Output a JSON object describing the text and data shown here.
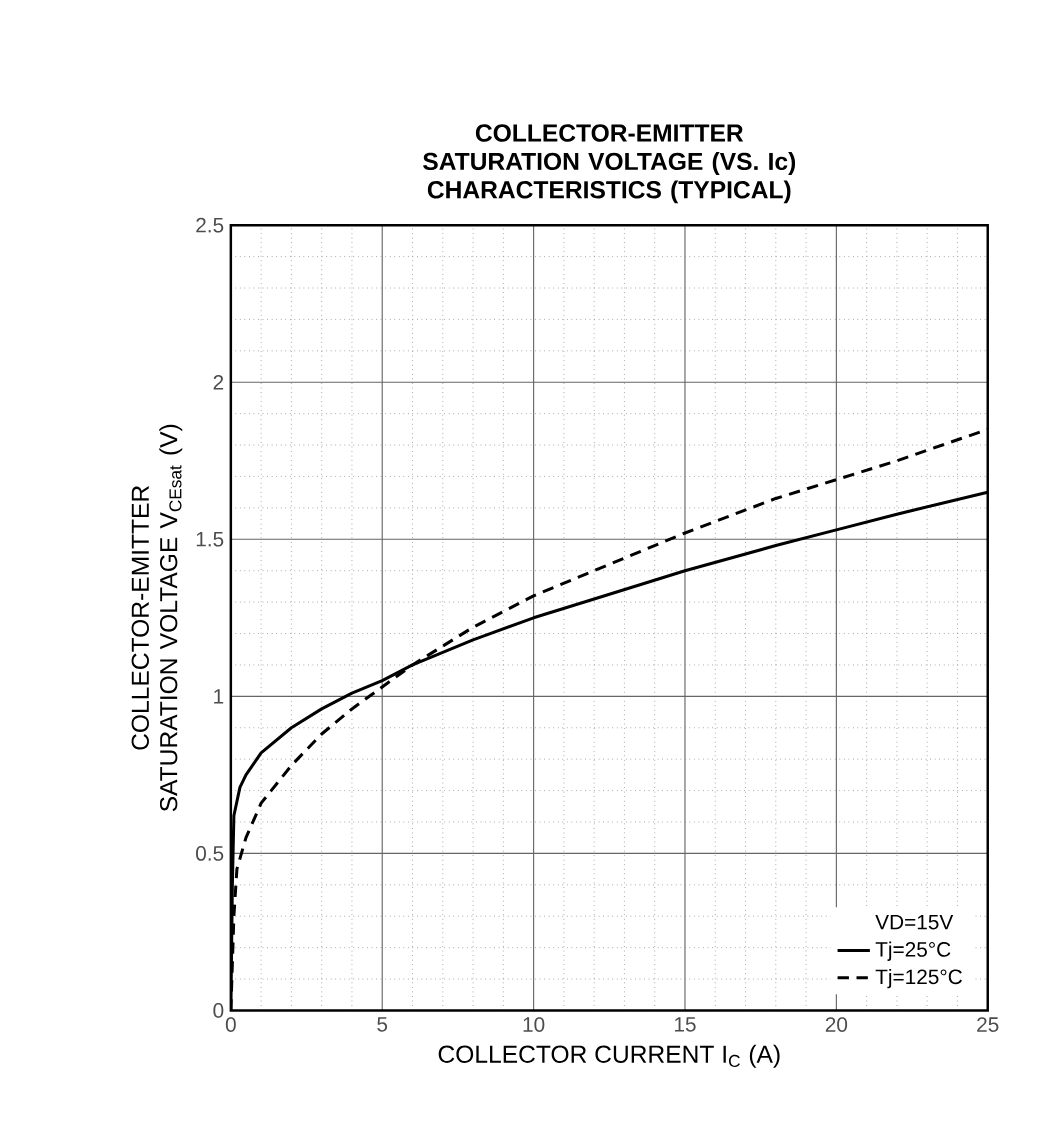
{
  "chart_data": {
    "type": "line",
    "title": "COLLECTOR-EMITTER SATURATION VOLTAGE (VS. Ic) CHARACTERISTICS (TYPICAL)",
    "xlabel": "COLLECTOR CURRENT I$_{C}$ (A)",
    "ylabel": "COLLECTOR-EMITTER SATURATION VOLTAGE V$_{CEsat}$ (V)",
    "xlim": [
      0,
      25
    ],
    "ylim": [
      0,
      2.5
    ],
    "xticks": [
      0,
      5,
      10,
      15,
      20,
      25
    ],
    "yticks": [
      0,
      0.5,
      1,
      1.5,
      2,
      2.5
    ],
    "grid": true,
    "legend": "bottom right",
    "legend_title": "VD=15V",
    "marker": "none",
    "series": [
      {
        "name": "Tj=25°C",
        "color": "#000000",
        "line_style": "solid",
        "x": [
          0,
          0.05,
          0.1,
          0.3,
          0.5,
          1,
          2,
          3,
          4,
          5,
          6,
          8,
          10,
          12,
          15,
          18,
          20,
          22,
          25
        ],
        "values": [
          0,
          0.4,
          0.62,
          0.71,
          0.75,
          0.82,
          0.9,
          0.96,
          1.01,
          1.05,
          1.1,
          1.18,
          1.25,
          1.31,
          1.4,
          1.48,
          1.53,
          1.58,
          1.65
        ]
      },
      {
        "name": "Tj=125°C",
        "color": "#000000",
        "line_style": "dashed",
        "x": [
          0,
          0.1,
          0.2,
          0.5,
          1,
          2,
          3,
          4,
          5,
          6,
          8,
          10,
          12,
          15,
          18,
          20,
          22,
          25
        ],
        "values": [
          0,
          0.3,
          0.45,
          0.55,
          0.66,
          0.78,
          0.88,
          0.96,
          1.03,
          1.1,
          1.22,
          1.32,
          1.4,
          1.52,
          1.63,
          1.69,
          1.75,
          1.85
        ]
      }
    ]
  }
}
